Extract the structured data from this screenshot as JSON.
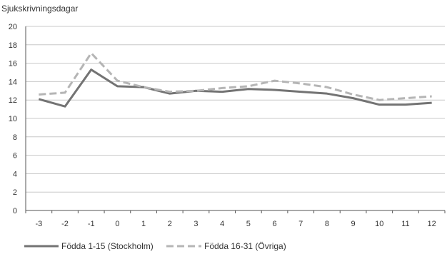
{
  "chart_data": {
    "type": "line",
    "title": "",
    "xlabel": "",
    "ylabel": "Sjukskrivningsdagar",
    "ylim": [
      0,
      20
    ],
    "yticks": [
      0,
      2,
      4,
      6,
      8,
      10,
      12,
      14,
      16,
      18,
      20
    ],
    "x": [
      -3,
      -2,
      -1,
      0,
      1,
      2,
      3,
      4,
      5,
      6,
      7,
      8,
      9,
      10,
      11,
      12
    ],
    "x_labels": [
      "-3",
      "-2",
      "-1",
      "0",
      "1",
      "2",
      "3",
      "4",
      "5",
      "6",
      "7",
      "8",
      "9",
      "10",
      "11",
      "12"
    ],
    "legend_position": "bottom",
    "series": [
      {
        "name": "Födda 1-15 (Stockholm)",
        "color": "#737373",
        "style": "solid",
        "values": [
          12.1,
          11.3,
          15.3,
          13.5,
          13.4,
          12.7,
          13.0,
          12.9,
          13.2,
          13.1,
          12.9,
          12.7,
          12.2,
          11.5,
          11.5,
          11.7
        ]
      },
      {
        "name": "Födda 16-31 (Övriga)",
        "color": "#b5b5b5",
        "style": "dashed",
        "values": [
          12.6,
          12.8,
          17.1,
          14.1,
          13.4,
          12.9,
          13.0,
          13.3,
          13.5,
          14.1,
          13.8,
          13.4,
          12.6,
          12.0,
          12.2,
          12.4
        ]
      }
    ]
  }
}
